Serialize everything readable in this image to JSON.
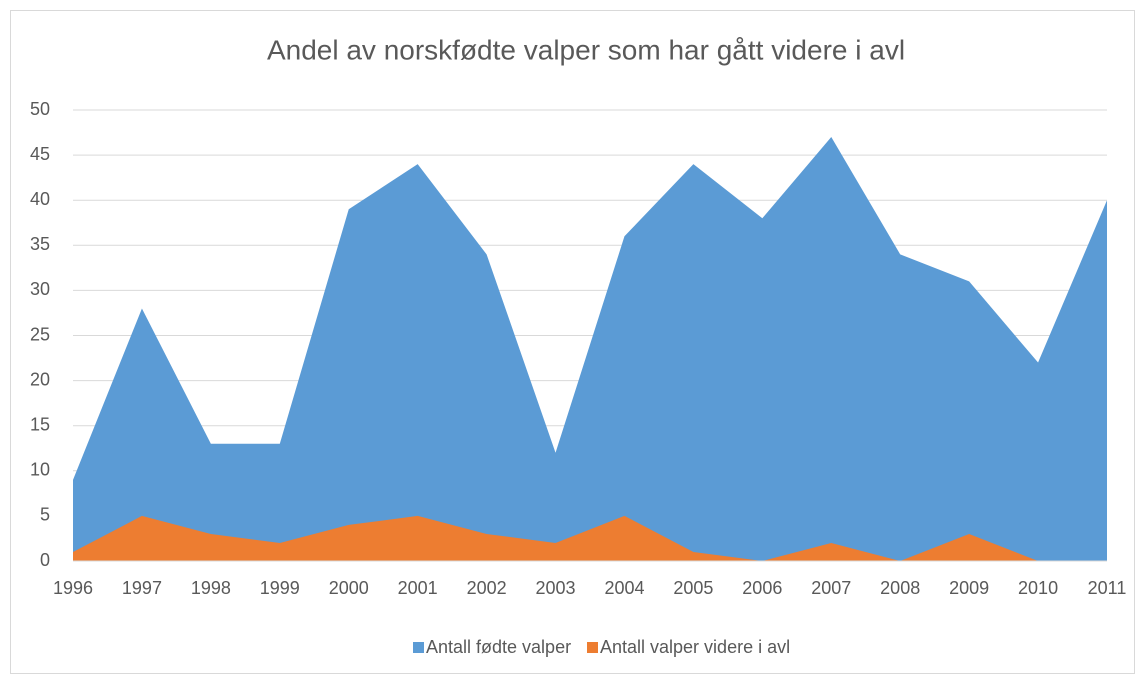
{
  "chart_data": {
    "type": "area",
    "title": "Andel av norskfødte valper som har gått videre i avl",
    "categories": [
      "1996",
      "1997",
      "1998",
      "1999",
      "2000",
      "2001",
      "2002",
      "2003",
      "2004",
      "2005",
      "2006",
      "2007",
      "2008",
      "2009",
      "2010",
      "2011"
    ],
    "series": [
      {
        "name": "Antall fødte valper",
        "color": "#5b9bd5",
        "values": [
          9,
          28,
          13,
          13,
          39,
          44,
          34,
          12,
          36,
          44,
          38,
          47,
          34,
          31,
          22,
          40
        ]
      },
      {
        "name": "Antall valper videre i  avl",
        "color": "#ed7d31",
        "values": [
          1,
          5,
          3,
          2,
          4,
          5,
          3,
          2,
          5,
          1,
          0,
          2,
          0,
          3,
          0,
          0
        ]
      }
    ],
    "ylim": [
      0,
      50
    ],
    "yticks": [
      0,
      5,
      10,
      15,
      20,
      25,
      30,
      35,
      40,
      45,
      50
    ],
    "grid": true,
    "legend": "bottom"
  }
}
